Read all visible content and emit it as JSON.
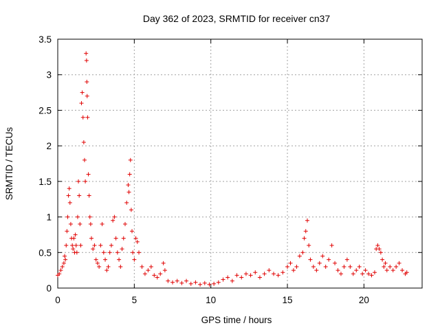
{
  "chart_data": {
    "type": "scatter",
    "title": "Day 362 of 2023, SRMTID for receiver cn37",
    "xlabel": "GPS time / hours",
    "ylabel": "SRMTID / TECUs",
    "xlim": [
      0,
      23.8
    ],
    "ylim": [
      0,
      3.5
    ],
    "xticks": [
      0,
      5,
      10,
      15,
      20
    ],
    "xtick_labels": [
      "0",
      "5",
      "10",
      "15",
      "20"
    ],
    "yticks": [
      0,
      0.5,
      1,
      1.5,
      2,
      2.5,
      3,
      3.5
    ],
    "ytick_labels": [
      "0",
      "0.5",
      "1",
      "1.5",
      "2",
      "2.5",
      "3",
      "3.5"
    ],
    "grid": true,
    "marker": "+",
    "marker_color": "#e00000",
    "series": [
      {
        "name": "SRMTID",
        "points": [
          [
            0.0,
            0.18
          ],
          [
            0.1,
            0.2
          ],
          [
            0.2,
            0.25
          ],
          [
            0.3,
            0.3
          ],
          [
            0.4,
            0.35
          ],
          [
            0.45,
            0.45
          ],
          [
            0.5,
            0.4
          ],
          [
            0.55,
            0.6
          ],
          [
            0.6,
            0.8
          ],
          [
            0.65,
            1.0
          ],
          [
            0.7,
            1.3
          ],
          [
            0.75,
            1.4
          ],
          [
            0.8,
            1.2
          ],
          [
            0.85,
            0.9
          ],
          [
            0.9,
            0.7
          ],
          [
            0.95,
            0.6
          ],
          [
            1.0,
            0.55
          ],
          [
            1.05,
            0.7
          ],
          [
            1.1,
            0.5
          ],
          [
            1.15,
            0.75
          ],
          [
            1.2,
            0.6
          ],
          [
            1.25,
            0.5
          ],
          [
            1.3,
            1.0
          ],
          [
            1.35,
            1.5
          ],
          [
            1.4,
            1.3
          ],
          [
            1.45,
            0.9
          ],
          [
            1.5,
            0.6
          ],
          [
            1.55,
            2.6
          ],
          [
            1.6,
            2.75
          ],
          [
            1.65,
            2.4
          ],
          [
            1.7,
            2.05
          ],
          [
            1.75,
            1.8
          ],
          [
            1.8,
            1.5
          ],
          [
            1.85,
            3.3
          ],
          [
            1.88,
            3.2
          ],
          [
            1.9,
            2.9
          ],
          [
            1.92,
            2.7
          ],
          [
            1.95,
            2.4
          ],
          [
            2.0,
            1.6
          ],
          [
            2.05,
            1.3
          ],
          [
            2.1,
            1.0
          ],
          [
            2.15,
            0.9
          ],
          [
            2.2,
            0.7
          ],
          [
            2.3,
            0.55
          ],
          [
            2.4,
            0.6
          ],
          [
            2.5,
            0.4
          ],
          [
            2.6,
            0.35
          ],
          [
            2.7,
            0.3
          ],
          [
            2.8,
            0.6
          ],
          [
            2.9,
            0.9
          ],
          [
            3.0,
            0.5
          ],
          [
            3.1,
            0.4
          ],
          [
            3.2,
            0.25
          ],
          [
            3.3,
            0.3
          ],
          [
            3.4,
            0.5
          ],
          [
            3.5,
            0.6
          ],
          [
            3.6,
            0.95
          ],
          [
            3.7,
            1.0
          ],
          [
            3.8,
            0.7
          ],
          [
            3.9,
            0.5
          ],
          [
            4.0,
            0.4
          ],
          [
            4.1,
            0.3
          ],
          [
            4.2,
            0.55
          ],
          [
            4.3,
            0.7
          ],
          [
            4.4,
            0.9
          ],
          [
            4.5,
            1.2
          ],
          [
            4.6,
            1.45
          ],
          [
            4.65,
            1.35
          ],
          [
            4.7,
            1.6
          ],
          [
            4.75,
            1.8
          ],
          [
            4.8,
            1.1
          ],
          [
            4.85,
            0.8
          ],
          [
            4.9,
            0.5
          ],
          [
            5.0,
            0.4
          ],
          [
            5.1,
            0.7
          ],
          [
            5.2,
            0.65
          ],
          [
            5.3,
            0.5
          ],
          [
            5.5,
            0.3
          ],
          [
            5.7,
            0.2
          ],
          [
            5.9,
            0.25
          ],
          [
            6.1,
            0.3
          ],
          [
            6.3,
            0.18
          ],
          [
            6.5,
            0.15
          ],
          [
            6.7,
            0.2
          ],
          [
            6.9,
            0.35
          ],
          [
            7.0,
            0.25
          ],
          [
            7.2,
            0.1
          ],
          [
            7.5,
            0.08
          ],
          [
            7.8,
            0.1
          ],
          [
            8.1,
            0.07
          ],
          [
            8.4,
            0.1
          ],
          [
            8.7,
            0.06
          ],
          [
            9.0,
            0.08
          ],
          [
            9.3,
            0.05
          ],
          [
            9.6,
            0.07
          ],
          [
            9.9,
            0.05
          ],
          [
            10.2,
            0.06
          ],
          [
            10.5,
            0.08
          ],
          [
            10.8,
            0.12
          ],
          [
            11.1,
            0.15
          ],
          [
            11.4,
            0.1
          ],
          [
            11.7,
            0.18
          ],
          [
            12.0,
            0.15
          ],
          [
            12.3,
            0.2
          ],
          [
            12.6,
            0.18
          ],
          [
            12.9,
            0.22
          ],
          [
            13.2,
            0.15
          ],
          [
            13.5,
            0.2
          ],
          [
            13.8,
            0.25
          ],
          [
            14.1,
            0.2
          ],
          [
            14.4,
            0.18
          ],
          [
            14.7,
            0.22
          ],
          [
            15.0,
            0.3
          ],
          [
            15.2,
            0.35
          ],
          [
            15.4,
            0.25
          ],
          [
            15.6,
            0.3
          ],
          [
            15.8,
            0.45
          ],
          [
            16.0,
            0.5
          ],
          [
            16.1,
            0.7
          ],
          [
            16.2,
            0.8
          ],
          [
            16.3,
            0.95
          ],
          [
            16.4,
            0.6
          ],
          [
            16.5,
            0.4
          ],
          [
            16.7,
            0.3
          ],
          [
            16.9,
            0.25
          ],
          [
            17.1,
            0.35
          ],
          [
            17.3,
            0.45
          ],
          [
            17.5,
            0.3
          ],
          [
            17.7,
            0.4
          ],
          [
            17.9,
            0.6
          ],
          [
            18.1,
            0.35
          ],
          [
            18.3,
            0.25
          ],
          [
            18.5,
            0.2
          ],
          [
            18.7,
            0.3
          ],
          [
            18.9,
            0.4
          ],
          [
            19.1,
            0.3
          ],
          [
            19.3,
            0.2
          ],
          [
            19.5,
            0.25
          ],
          [
            19.7,
            0.3
          ],
          [
            19.9,
            0.2
          ],
          [
            20.1,
            0.25
          ],
          [
            20.3,
            0.2
          ],
          [
            20.5,
            0.18
          ],
          [
            20.7,
            0.22
          ],
          [
            20.8,
            0.55
          ],
          [
            20.9,
            0.6
          ],
          [
            21.0,
            0.55
          ],
          [
            21.1,
            0.5
          ],
          [
            21.2,
            0.4
          ],
          [
            21.3,
            0.3
          ],
          [
            21.4,
            0.35
          ],
          [
            21.5,
            0.25
          ],
          [
            21.7,
            0.3
          ],
          [
            21.9,
            0.25
          ],
          [
            22.1,
            0.3
          ],
          [
            22.3,
            0.35
          ],
          [
            22.5,
            0.25
          ],
          [
            22.7,
            0.2
          ],
          [
            22.8,
            0.22
          ]
        ]
      }
    ]
  }
}
